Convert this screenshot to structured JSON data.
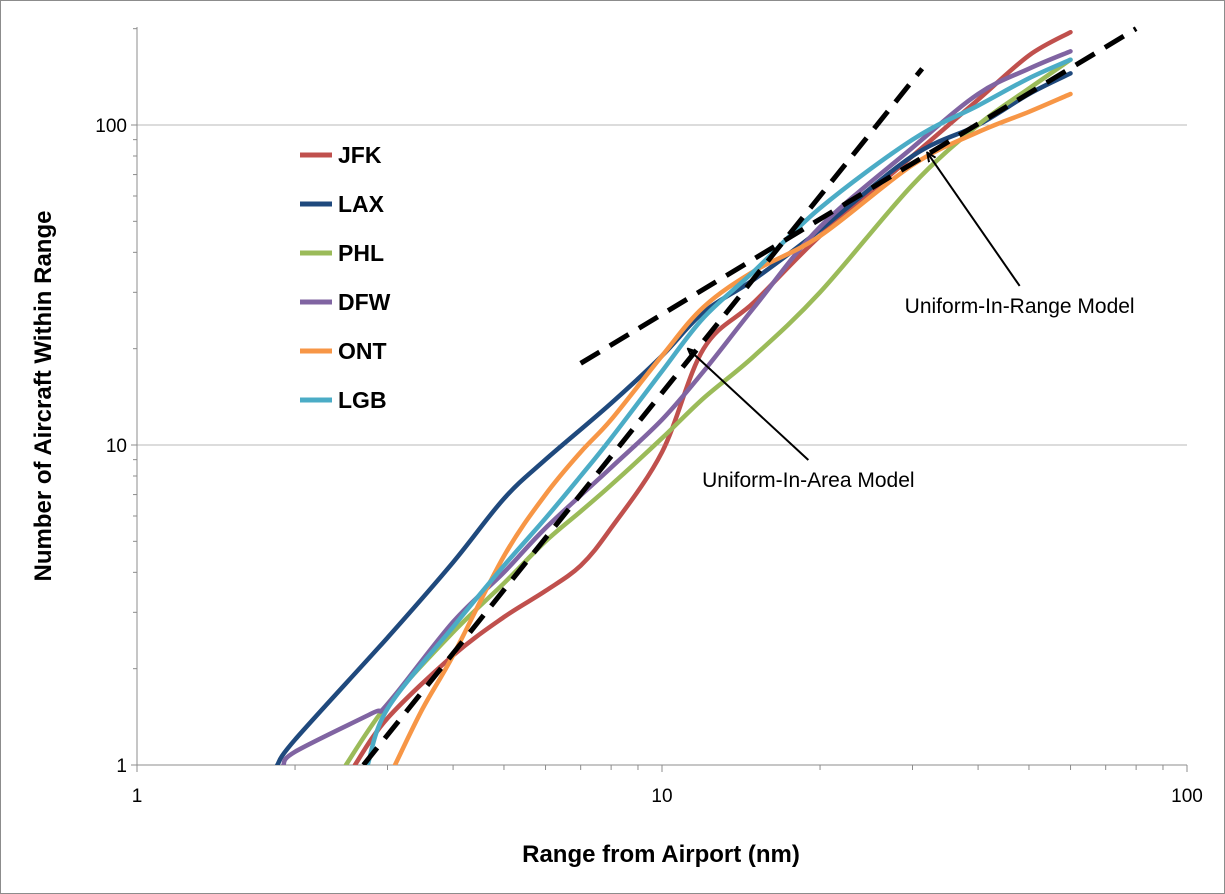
{
  "chart_data": {
    "type": "line",
    "xlabel": "Range from Airport (nm)",
    "ylabel": "Number of Aircraft Within Range",
    "x_scale": "log",
    "y_scale": "log",
    "xlim": [
      1,
      100
    ],
    "ylim": [
      1,
      200
    ],
    "x_ticks": [
      "1",
      "10",
      "100"
    ],
    "y_ticks": [
      "1",
      "10",
      "100"
    ],
    "grid": "horizontal major gridlines",
    "legend_position": "upper-left",
    "series": [
      {
        "name": "JFK",
        "color": "#c0504d",
        "x": [
          2.6,
          3,
          4,
          5,
          6,
          7,
          8,
          10,
          12,
          15,
          20,
          30,
          40,
          50,
          60
        ],
        "y": [
          1,
          1.4,
          2.2,
          2.9,
          3.5,
          4.2,
          5.5,
          9.5,
          20,
          28,
          45,
          80,
          120,
          165,
          195
        ]
      },
      {
        "name": "LAX",
        "color": "#1f497d",
        "x": [
          1.85,
          2,
          3,
          4,
          5,
          6,
          8,
          10,
          12,
          15,
          20,
          30,
          40,
          50,
          60
        ],
        "y": [
          1,
          1.2,
          2.5,
          4.3,
          6.8,
          9,
          13.5,
          19,
          26,
          33,
          47,
          80,
          100,
          125,
          145
        ]
      },
      {
        "name": "PHL",
        "color": "#9bbb59",
        "x": [
          2.5,
          3,
          4,
          5,
          6,
          7,
          8,
          10,
          12,
          15,
          20,
          30,
          40,
          50,
          60
        ],
        "y": [
          1,
          1.55,
          2.6,
          3.7,
          5,
          6.2,
          7.5,
          10.5,
          14,
          19,
          30,
          65,
          100,
          130,
          160
        ]
      },
      {
        "name": "DFW",
        "color": "#8064a2",
        "x": [
          1.9,
          2,
          2.8,
          3,
          4,
          5,
          6,
          8,
          10,
          12,
          15,
          20,
          30,
          40,
          50,
          60
        ],
        "y": [
          1,
          1.1,
          1.45,
          1.55,
          2.8,
          4,
          5.5,
          8.5,
          12,
          17,
          27,
          48,
          85,
          125,
          150,
          170
        ]
      },
      {
        "name": "ONT",
        "color": "#f79646",
        "x": [
          3.1,
          3.5,
          4,
          5,
          6,
          7,
          8,
          10,
          12,
          15,
          20,
          30,
          40,
          50,
          60
        ],
        "y": [
          1,
          1.5,
          2.2,
          4.5,
          7,
          9.5,
          12,
          19,
          27,
          35,
          45,
          75,
          95,
          110,
          125
        ]
      },
      {
        "name": "LGB",
        "color": "#4bacc6",
        "x": [
          2.75,
          3,
          4,
          5,
          6,
          7,
          8,
          10,
          12,
          15,
          20,
          30,
          40,
          50,
          60
        ],
        "y": [
          1,
          1.5,
          2.7,
          4.2,
          5.9,
          8,
          10.5,
          17,
          25,
          35,
          55,
          90,
          115,
          140,
          160
        ]
      }
    ],
    "models": [
      {
        "label": "Uniform-In-Area Model",
        "style": "dashed",
        "color": "#000000",
        "x": [
          2.7,
          31.3
        ],
        "y": [
          1,
          150
        ]
      },
      {
        "label": "Uniform-In-Range Model",
        "style": "dashed",
        "color": "#000000",
        "x": [
          7,
          80
        ],
        "y": [
          18,
          200
        ]
      }
    ],
    "annotations": [
      {
        "text": "Uniform-In-Range Model",
        "points_to": [
          32,
          82
        ],
        "text_at": [
          48,
          28
        ]
      },
      {
        "text": "Uniform-In-Area Model",
        "points_to": [
          11.2,
          20
        ],
        "text_at": [
          19,
          8
        ]
      }
    ]
  }
}
